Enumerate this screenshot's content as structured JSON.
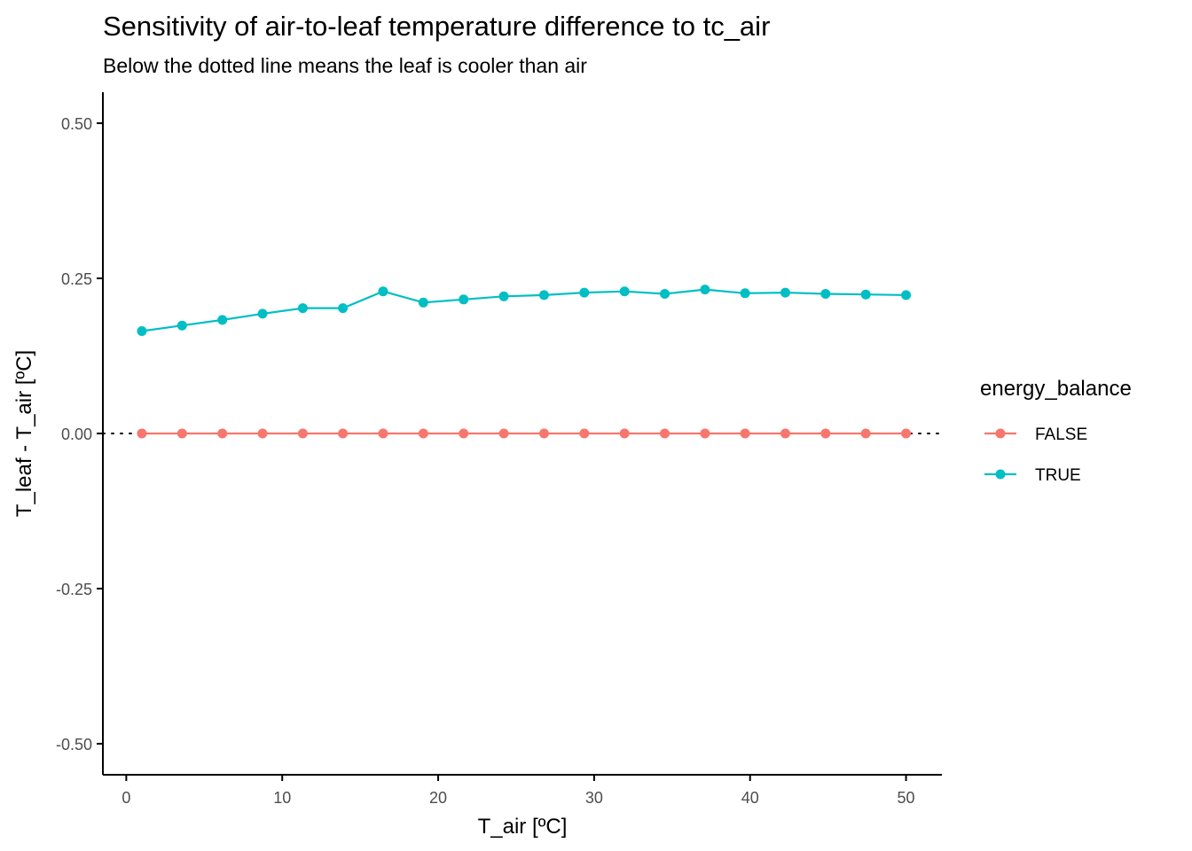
{
  "chart_data": {
    "type": "line",
    "title": "Sensitivity of air-to-leaf temperature difference to tc_air",
    "subtitle": "Below the dotted line means the leaf is cooler than air",
    "xlabel": "T_air [ºC]",
    "ylabel": "T_leaf - T_air [ºC]",
    "xlim": [
      -1.5,
      52.3
    ],
    "ylim": [
      -0.55,
      0.55
    ],
    "x_ticks": [
      0,
      10,
      20,
      30,
      40,
      50
    ],
    "x_tick_labels": [
      "0",
      "10",
      "20",
      "30",
      "40",
      "50"
    ],
    "y_ticks": [
      -0.5,
      -0.25,
      0,
      0.25,
      0.5
    ],
    "y_tick_labels": [
      "-0.50",
      "-0.25",
      "0.00",
      "0.25",
      "0.50"
    ],
    "reference_line": {
      "y": 0,
      "style": "dotted"
    },
    "grid": false,
    "legend": {
      "title": "energy_balance",
      "position": "right"
    },
    "x": [
      1,
      3.58,
      6.16,
      8.74,
      11.32,
      13.89,
      16.47,
      19.05,
      21.63,
      24.21,
      26.79,
      29.37,
      31.95,
      34.53,
      37.11,
      39.68,
      42.26,
      44.84,
      47.42,
      50
    ],
    "series": [
      {
        "name": "FALSE",
        "color": "#F8766D",
        "values": [
          0,
          0,
          0,
          0,
          0,
          0,
          0,
          0,
          0,
          0,
          0,
          0,
          0,
          0,
          0,
          0,
          0,
          0,
          0,
          0
        ]
      },
      {
        "name": "TRUE",
        "color": "#00BFC4",
        "values": [
          0.165,
          0.174,
          0.183,
          0.193,
          0.202,
          0.202,
          0.229,
          0.211,
          0.216,
          0.221,
          0.223,
          0.227,
          0.229,
          0.225,
          0.232,
          0.226,
          0.227,
          0.225,
          0.224,
          0.223
        ]
      }
    ]
  }
}
